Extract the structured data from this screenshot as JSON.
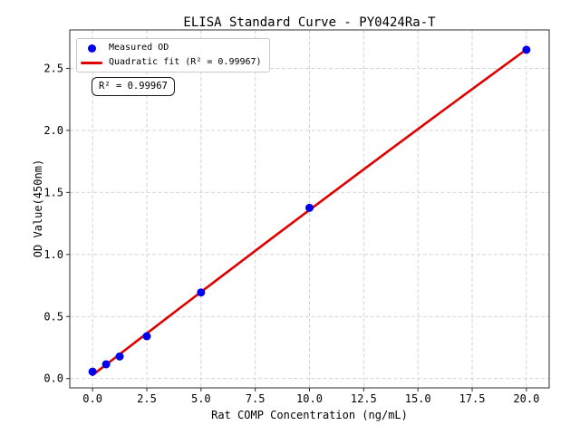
{
  "figure": {
    "background": "#ffffff"
  },
  "colors": {
    "scatter": "#0000ee",
    "fit_line": "#e00000",
    "grid": "#cfcfcf",
    "spine": "#2b2b2b",
    "tick_text": "#000000",
    "legend_border": "#c9c9c9"
  },
  "chart_data": {
    "type": "scatter",
    "title": "ELISA Standard Curve - PY0424Ra-T",
    "xlabel": "Rat COMP Concentration (ng/mL)",
    "ylabel": "OD Value(450nm)",
    "xlim": [
      -1.05,
      21.05
    ],
    "ylim": [
      -0.075,
      2.81
    ],
    "grid": true,
    "legend_position": "upper left",
    "x_ticks": {
      "values": [
        0,
        2.5,
        5,
        7.5,
        10,
        12.5,
        15,
        17.5,
        20
      ],
      "labels": [
        "0.0",
        "2.5",
        "5.0",
        "7.5",
        "10.0",
        "12.5",
        "15.0",
        "17.5",
        "20.0"
      ]
    },
    "y_ticks": {
      "values": [
        0,
        0.5,
        1,
        1.5,
        2,
        2.5
      ],
      "labels": [
        "0.0",
        "0.5",
        "1.0",
        "1.5",
        "2.0",
        "2.5"
      ]
    },
    "series": [
      {
        "name": "Measured OD",
        "type": "scatter",
        "color": "#0000ee",
        "x": [
          0,
          0.625,
          1.25,
          2.5,
          5,
          10,
          20
        ],
        "y": [
          0.056,
          0.115,
          0.178,
          0.341,
          0.694,
          1.376,
          2.65
        ]
      },
      {
        "name": "Quadratic fit (R² = 0.99967)",
        "type": "line",
        "color": "#e00000",
        "x": [
          0,
          2,
          4,
          6,
          8,
          10,
          12,
          14,
          16,
          18,
          20
        ],
        "y": [
          0.028,
          0.297,
          0.565,
          0.831,
          1.096,
          1.359,
          1.621,
          1.881,
          2.14,
          2.397,
          2.653
        ]
      }
    ],
    "r_squared": 0.99967
  },
  "legend": {
    "items": [
      {
        "marker": "dot",
        "label": "Measured OD"
      },
      {
        "marker": "line",
        "label": "Quadratic fit (R² = 0.99967)"
      }
    ]
  },
  "annotation": {
    "text": "R² = 0.99967"
  }
}
